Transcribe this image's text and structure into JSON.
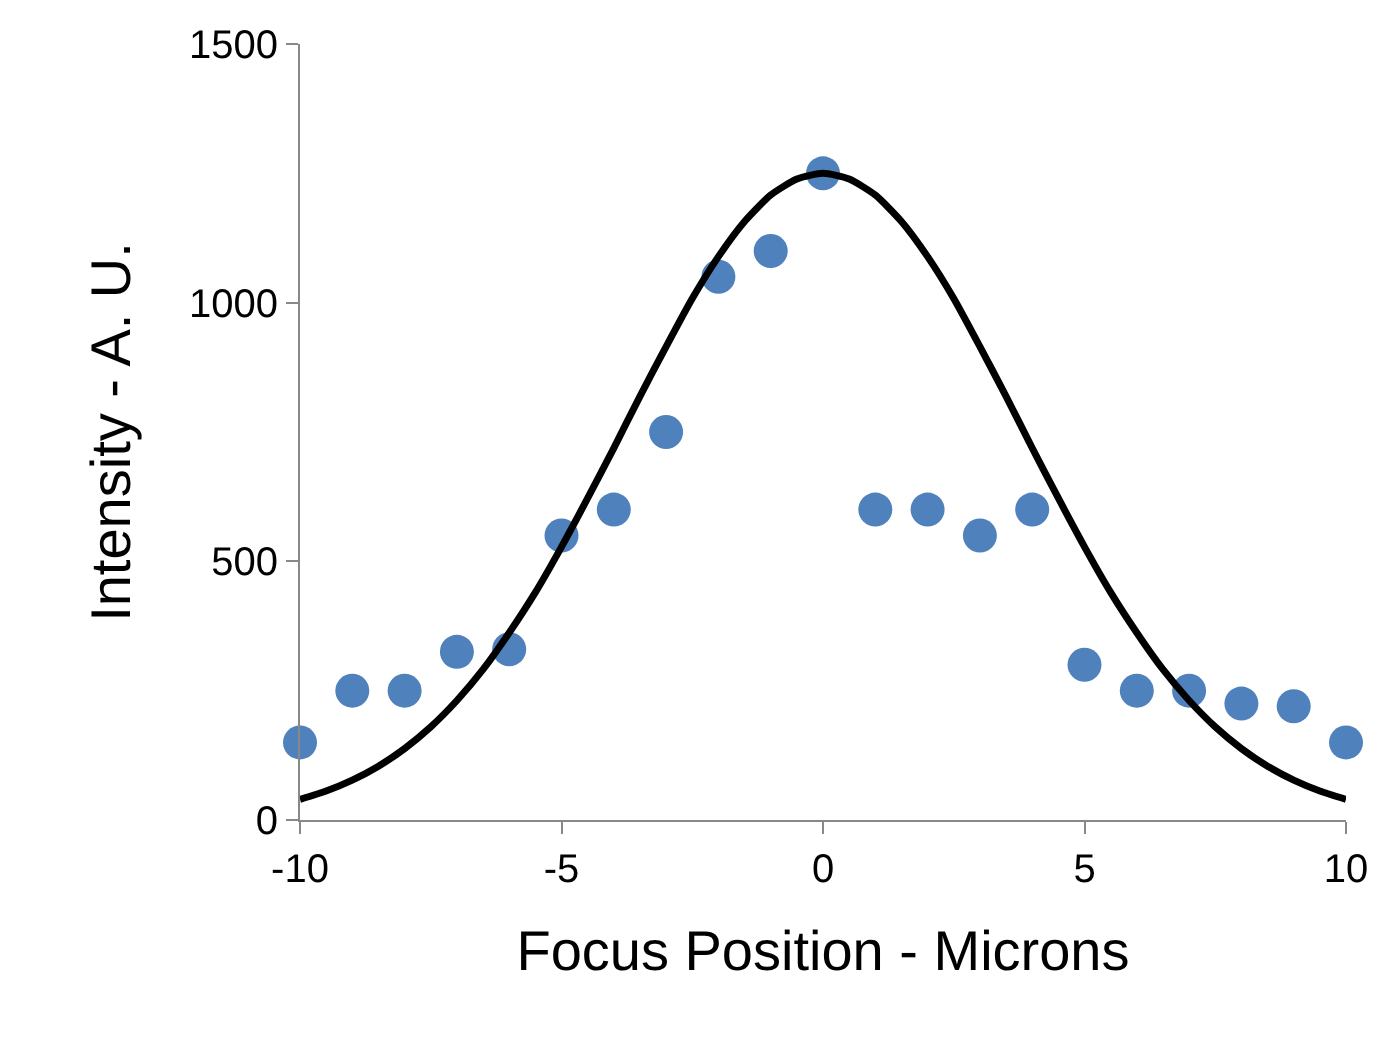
{
  "chart_data": {
    "type": "scatter",
    "xlabel": "Focus Position - Microns",
    "ylabel": "Intensity - A. U.",
    "xlim": [
      -10,
      10
    ],
    "ylim": [
      0,
      1500
    ],
    "xticks": [
      -10,
      -5,
      0,
      5,
      10
    ],
    "yticks": [
      0,
      500,
      1000,
      1500
    ],
    "grid": false,
    "series": [
      {
        "color": "#4f81bd",
        "marker": "circle",
        "x": [
          -10,
          -9,
          -8,
          -7,
          -6,
          -5,
          -4,
          -3,
          -2,
          -1,
          0,
          1,
          2,
          3,
          4,
          5,
          6,
          7,
          8,
          9,
          10
        ],
        "values": [
          150,
          250,
          250,
          325,
          330,
          550,
          600,
          750,
          1050,
          1100,
          1250,
          600,
          600,
          550,
          600,
          300,
          250,
          250,
          225,
          220,
          150
        ]
      },
      {
        "type": "line",
        "color": "#000000",
        "marker": "none",
        "line_style": "solid",
        "x": [
          -10,
          -9.5,
          -9,
          -8.5,
          -8,
          -7.5,
          -7,
          -6.5,
          -6,
          -5.5,
          -5,
          -4.5,
          -4,
          -3.5,
          -3,
          -2.5,
          -2,
          -1.5,
          -1,
          -0.5,
          0,
          0.5,
          1,
          1.5,
          2,
          2.5,
          3,
          3.5,
          4,
          4.5,
          5,
          5.5,
          6,
          6.5,
          7,
          7.5,
          8,
          8.5,
          9,
          9.5,
          10
        ],
        "values": [
          40,
          56,
          77,
          104,
          138,
          180,
          231,
          291,
          362,
          440,
          528,
          622,
          719,
          819,
          915,
          1008,
          1089,
          1157,
          1208,
          1239,
          1250,
          1239,
          1208,
          1157,
          1089,
          1008,
          915,
          819,
          719,
          622,
          528,
          440,
          362,
          291,
          231,
          180,
          138,
          104,
          77,
          56,
          40
        ]
      }
    ]
  }
}
